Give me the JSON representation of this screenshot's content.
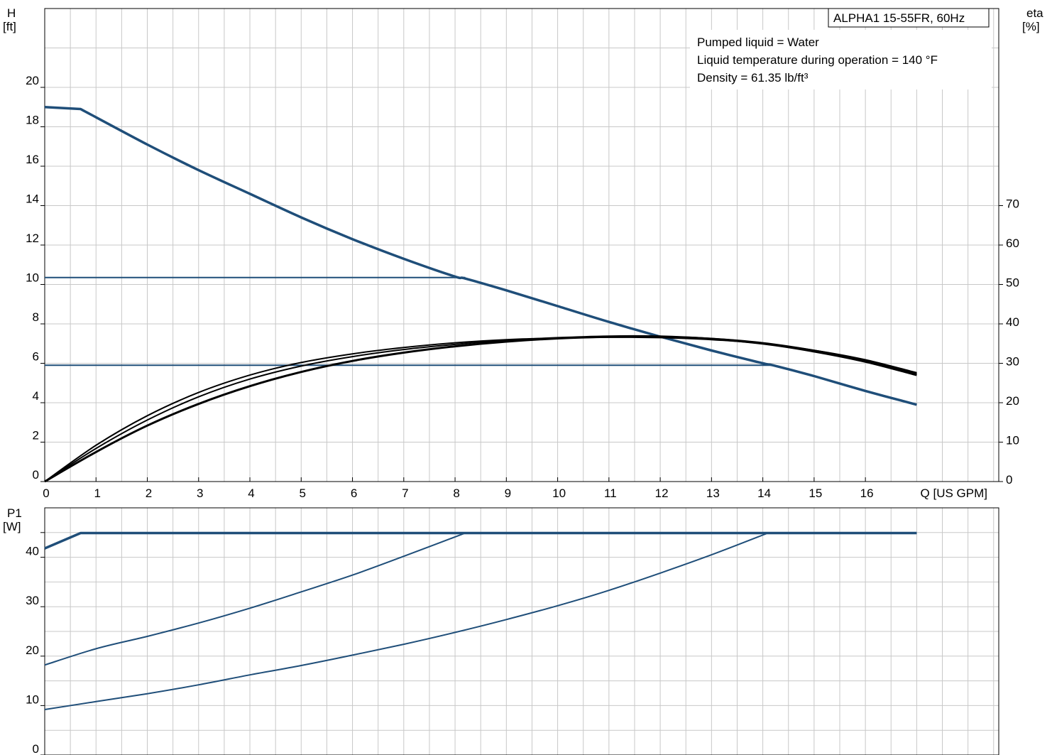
{
  "colors": {
    "pump_blue": "#1f4e79",
    "efficiency": "#000000",
    "grid": "#c8c8c8"
  },
  "chart_data": [
    {
      "type": "line",
      "title": "ALPHA1 15-55FR, 60Hz",
      "annotations": [
        "Pumped liquid = Water",
        "Liquid temperature during operation = 140 °F",
        "Density = 61.35 lb/ft³"
      ],
      "xlabel": "Q [US GPM]",
      "ylabel": "H",
      "ylabel_unit": "[ft]",
      "y2label": "eta",
      "y2label_unit": "[%]",
      "xlim": [
        0,
        18.6
      ],
      "ylim": [
        0,
        24
      ],
      "y2lim": [
        0,
        120
      ],
      "x_ticks": [
        "0",
        "1",
        "2",
        "3",
        "4",
        "5",
        "6",
        "7",
        "8",
        "9",
        "10",
        "11",
        "12",
        "13",
        "14",
        "15",
        "16"
      ],
      "y_ticks": [
        "0",
        "2",
        "4",
        "6",
        "8",
        "10",
        "12",
        "14",
        "16",
        "18",
        "20"
      ],
      "y2_ticks": [
        "0",
        "10",
        "20",
        "30",
        "40",
        "50",
        "60",
        "70"
      ],
      "grid": true,
      "series": [
        {
          "axis": "left",
          "color": "#1f4e79",
          "width": 3.5,
          "x": [
            0,
            0.7,
            2,
            3,
            4,
            5,
            6,
            7,
            8,
            8.2,
            9,
            10,
            11,
            12,
            13,
            14,
            14.2,
            15,
            16,
            17
          ],
          "y": [
            19.0,
            18.9,
            17.1,
            15.8,
            14.6,
            13.4,
            12.3,
            11.3,
            10.4,
            10.3,
            9.7,
            8.9,
            8.1,
            7.35,
            6.65,
            6.0,
            5.9,
            5.35,
            4.6,
            3.9
          ]
        },
        {
          "axis": "left",
          "color": "#1f4e79",
          "width": 2,
          "x": [
            0,
            8.2
          ],
          "y": [
            10.35,
            10.35
          ]
        },
        {
          "axis": "left",
          "color": "#1f4e79",
          "width": 2,
          "x": [
            0,
            14.2
          ],
          "y": [
            5.9,
            5.9
          ]
        },
        {
          "axis": "right",
          "color": "#000000",
          "width": 2,
          "x": [
            0,
            1,
            2,
            3,
            4,
            5,
            6,
            7,
            8,
            9,
            10,
            11,
            12,
            13,
            14,
            15,
            16,
            17
          ],
          "y": [
            0,
            9.2,
            16.7,
            22.6,
            27.0,
            30.2,
            32.4,
            34.0,
            35.2,
            36.0,
            36.4,
            36.6,
            36.5,
            36.0,
            35.0,
            33.3,
            30.9,
            27.6
          ]
        },
        {
          "axis": "right",
          "color": "#000000",
          "width": 2,
          "x": [
            0,
            1,
            2,
            3,
            4,
            5,
            6,
            7,
            8,
            9,
            10,
            11,
            12,
            13,
            14,
            15,
            16,
            17
          ],
          "y": [
            0,
            8.4,
            15.6,
            21.5,
            26.0,
            29.3,
            31.7,
            33.5,
            34.8,
            35.8,
            36.5,
            36.9,
            36.9,
            36.3,
            35.2,
            33.3,
            30.8,
            27.4
          ]
        },
        {
          "axis": "right",
          "color": "#000000",
          "width": 3,
          "x": [
            0,
            1,
            2,
            3,
            4,
            5,
            6,
            7,
            8,
            9,
            10,
            11,
            12,
            13,
            14,
            15,
            16,
            17
          ],
          "y": [
            0,
            7.5,
            14.2,
            19.7,
            24.2,
            27.8,
            30.6,
            32.7,
            34.3,
            35.5,
            36.3,
            36.7,
            36.7,
            36.2,
            35.0,
            33.0,
            30.4,
            27.0
          ]
        }
      ]
    },
    {
      "type": "line",
      "xlabel": "",
      "ylabel": "P1",
      "ylabel_unit": "[W]",
      "xlim": [
        0,
        18.6
      ],
      "ylim": [
        0,
        50
      ],
      "y_ticks": [
        "0",
        "10",
        "20",
        "30",
        "40"
      ],
      "grid": true,
      "series": [
        {
          "color": "#1f4e79",
          "width": 3.5,
          "x": [
            0,
            0.7,
            17
          ],
          "y": [
            41.8,
            44.9,
            44.9
          ]
        },
        {
          "color": "#1f4e79",
          "width": 2,
          "x": [
            0,
            1,
            2,
            3,
            4,
            5,
            6,
            7,
            8.2
          ],
          "y": [
            18.2,
            21.5,
            24.0,
            26.7,
            29.7,
            33.0,
            36.4,
            40.2,
            44.9
          ]
        },
        {
          "color": "#1f4e79",
          "width": 2,
          "x": [
            0,
            1,
            2,
            3,
            4,
            5,
            6,
            7,
            8,
            9,
            10,
            11,
            12,
            13,
            14.1
          ],
          "y": [
            9.2,
            10.8,
            12.4,
            14.2,
            16.2,
            18.1,
            20.2,
            22.4,
            24.8,
            27.4,
            30.2,
            33.3,
            36.8,
            40.5,
            44.9
          ]
        }
      ]
    }
  ]
}
